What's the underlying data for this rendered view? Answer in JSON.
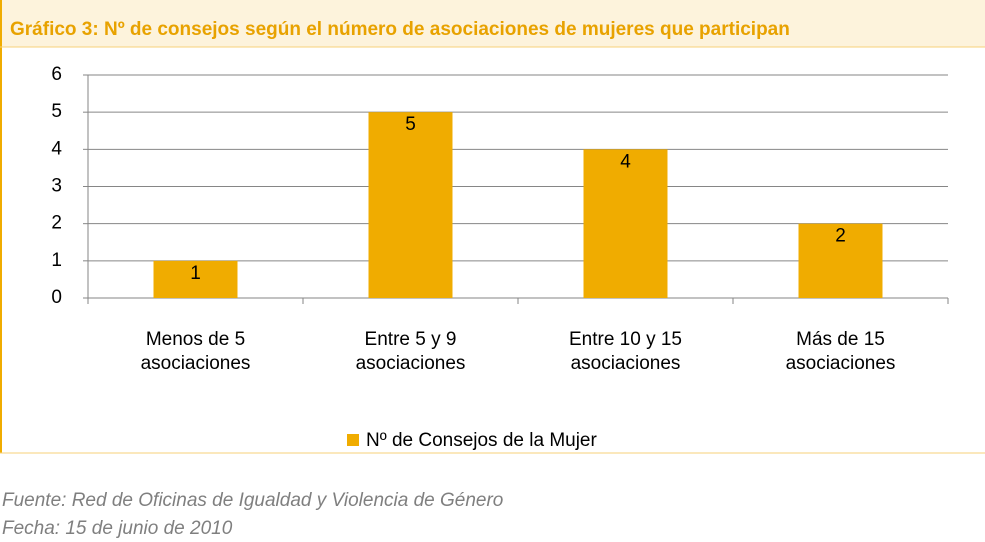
{
  "chart_data": {
    "type": "bar",
    "title": "Gráfico 3: Nº de consejos según el número de asociaciones de mujeres que participan",
    "categories": [
      "Menos de 5 asociaciones",
      "Entre 5 y 9 asociaciones",
      "Entre 10 y 15 asociaciones",
      "Más de 15 asociaciones"
    ],
    "series": [
      {
        "name": "Nº de Consejos de la Mujer",
        "color": "#f0ac00",
        "values": [
          1,
          5,
          4,
          2
        ]
      }
    ],
    "ylim": [
      0,
      6
    ],
    "yticks": [
      0,
      1,
      2,
      3,
      4,
      5,
      6
    ],
    "grid": true,
    "legend": "bottom",
    "notes": [
      "Fuente: Red de Oficinas de Igualdad y Violencia de Género",
      "Fecha: 15 de junio de 2010"
    ]
  }
}
